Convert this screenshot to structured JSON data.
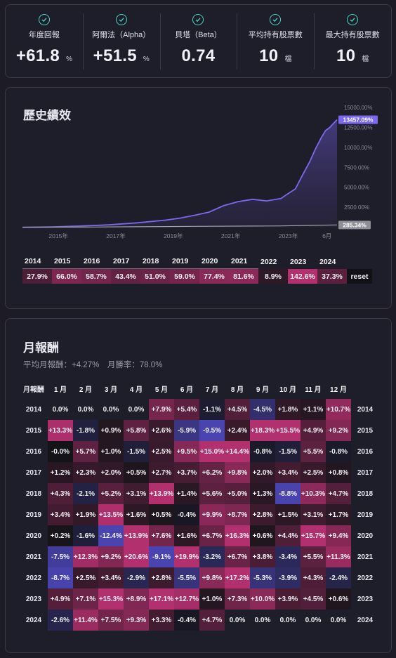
{
  "stats": [
    {
      "label": "年度回報",
      "value": "+61.8",
      "unit": "%"
    },
    {
      "label": "阿爾法（Alpha）",
      "value": "+51.5",
      "unit": "%"
    },
    {
      "label": "貝塔（Beta）",
      "value": "0.74",
      "unit": ""
    },
    {
      "label": "平均持有股票數",
      "value": "10",
      "unit": "檔"
    },
    {
      "label": "最大持有股票數",
      "value": "10",
      "unit": "檔"
    }
  ],
  "history": {
    "title": "歷史績效",
    "chart_data": {
      "type": "line",
      "y_ticks": [
        "15000.00%",
        "12500.00%",
        "10000.00%",
        "7500.00%",
        "5000.00%",
        "2500.00%"
      ],
      "y_tick_values": [
        15000,
        12500,
        10000,
        7500,
        5000,
        2500
      ],
      "ylim": [
        -300,
        15000
      ],
      "x_ticks": [
        "2015年",
        "2017年",
        "2019年",
        "2021年",
        "2023年",
        "6月"
      ],
      "x_tick_values": [
        2015.25,
        2017.25,
        2019.25,
        2021.25,
        2023.25,
        2024.6
      ],
      "xlim": [
        2014.0,
        2024.95
      ],
      "series": [
        {
          "color": "#7b68ee",
          "end_label": "13457.09%",
          "x": [
            2014.0,
            2015.0,
            2016.0,
            2017.0,
            2018.0,
            2019.0,
            2019.5,
            2020.0,
            2020.5,
            2021.0,
            2021.5,
            2022.0,
            2022.5,
            2023.0,
            2023.2,
            2023.5,
            2023.7,
            2024.0,
            2024.2,
            2024.4,
            2024.55,
            2024.7,
            2024.8,
            2024.95
          ],
          "y": [
            0,
            30,
            150,
            300,
            550,
            900,
            1150,
            1500,
            1900,
            2700,
            3200,
            3500,
            3300,
            3600,
            4100,
            4800,
            6200,
            8200,
            9800,
            11200,
            12100,
            12500,
            12900,
            13457
          ]
        },
        {
          "color": "#a0a0a8",
          "end_label": "285.34%",
          "x": [
            2014.0,
            2016.0,
            2018.0,
            2020.0,
            2022.0,
            2023.0,
            2024.0,
            2024.95
          ],
          "y": [
            0,
            20,
            60,
            110,
            150,
            170,
            230,
            285
          ]
        }
      ]
    },
    "years": [
      "2014",
      "2015",
      "2016",
      "2017",
      "2018",
      "2019",
      "2020",
      "2021",
      "2022",
      "2023",
      "2024"
    ],
    "year_returns": [
      27.9,
      66.0,
      58.7,
      43.4,
      51.0,
      59.0,
      77.4,
      81.6,
      8.9,
      142.6,
      37.3
    ],
    "year_labels": [
      "27.9%",
      "66.0%",
      "58.7%",
      "43.4%",
      "51.0%",
      "59.0%",
      "77.4%",
      "81.6%",
      "8.9%",
      "142.6%",
      "37.3%"
    ],
    "reset_label": "reset"
  },
  "monthly": {
    "title": "月報酬",
    "subtitle": "平均月報酬：+4.27%　月勝率：78.0%",
    "corner_label": "月報酬",
    "months": [
      "1 月",
      "2 月",
      "3 月",
      "4 月",
      "5 月",
      "6 月",
      "7 月",
      "8 月",
      "9 月",
      "10 月",
      "11 月",
      "12 月"
    ],
    "rows": [
      {
        "year": "2014",
        "vals": [
          "0.0%",
          "0.0%",
          "0.0%",
          "0.0%",
          "+7.9%",
          "+5.4%",
          "-1.1%",
          "+4.5%",
          "-4.5%",
          "+1.8%",
          "+1.1%",
          "+10.7%"
        ]
      },
      {
        "year": "2015",
        "vals": [
          "+13.3%",
          "-1.8%",
          "+0.9%",
          "+5.8%",
          "+2.6%",
          "-5.9%",
          "-9.5%",
          "+2.4%",
          "+18.3%",
          "+15.5%",
          "+4.9%",
          "+9.2%"
        ]
      },
      {
        "year": "2016",
        "vals": [
          "-0.0%",
          "+5.7%",
          "+1.0%",
          "-1.5%",
          "+2.5%",
          "+9.5%",
          "+15.0%",
          "+14.4%",
          "-0.8%",
          "-1.5%",
          "+5.5%",
          "-0.8%"
        ]
      },
      {
        "year": "2017",
        "vals": [
          "+1.2%",
          "+2.3%",
          "+2.0%",
          "+0.5%",
          "+2.7%",
          "+3.7%",
          "+6.2%",
          "+9.8%",
          "+2.0%",
          "+3.4%",
          "+2.5%",
          "+0.8%"
        ]
      },
      {
        "year": "2018",
        "vals": [
          "+4.3%",
          "-2.1%",
          "+5.2%",
          "+3.1%",
          "+13.9%",
          "+1.4%",
          "+5.6%",
          "+5.0%",
          "+1.3%",
          "-8.8%",
          "+10.3%",
          "+4.7%"
        ]
      },
      {
        "year": "2019",
        "vals": [
          "+3.4%",
          "+1.9%",
          "+13.5%",
          "+1.6%",
          "+0.5%",
          "-0.4%",
          "+9.9%",
          "+8.7%",
          "+2.8%",
          "+1.5%",
          "+3.1%",
          "+1.7%"
        ]
      },
      {
        "year": "2020",
        "vals": [
          "+0.2%",
          "-1.6%",
          "-12.4%",
          "+13.9%",
          "+7.6%",
          "+1.6%",
          "+6.7%",
          "+16.3%",
          "+0.6%",
          "+4.4%",
          "+15.7%",
          "+9.4%"
        ]
      },
      {
        "year": "2021",
        "vals": [
          "-7.5%",
          "+12.3%",
          "+9.2%",
          "+20.6%",
          "-9.1%",
          "+19.9%",
          "-3.2%",
          "+6.7%",
          "+3.8%",
          "-3.4%",
          "+5.5%",
          "+11.3%"
        ]
      },
      {
        "year": "2022",
        "vals": [
          "-8.7%",
          "+2.5%",
          "+3.4%",
          "-2.9%",
          "+2.8%",
          "-5.5%",
          "+9.8%",
          "+17.2%",
          "-5.3%",
          "-3.9%",
          "+4.3%",
          "-2.4%"
        ]
      },
      {
        "year": "2023",
        "vals": [
          "+4.9%",
          "+7.1%",
          "+15.3%",
          "+8.9%",
          "+17.1%",
          "+12.7%",
          "+1.0%",
          "+7.3%",
          "+10.0%",
          "+3.9%",
          "+4.5%",
          "+0.6%"
        ]
      },
      {
        "year": "2024",
        "vals": [
          "-2.6%",
          "+11.4%",
          "+7.5%",
          "+9.3%",
          "+3.3%",
          "-0.4%",
          "+4.7%",
          "0.0%",
          "0.0%",
          "0.0%",
          "0.0%",
          "0.0%"
        ]
      }
    ]
  },
  "colors": {
    "positive": "#b3306f",
    "negative": "#4a44b0",
    "neutral": "#141418",
    "accent": "#7b68ee",
    "check": "#4fd1c5"
  }
}
